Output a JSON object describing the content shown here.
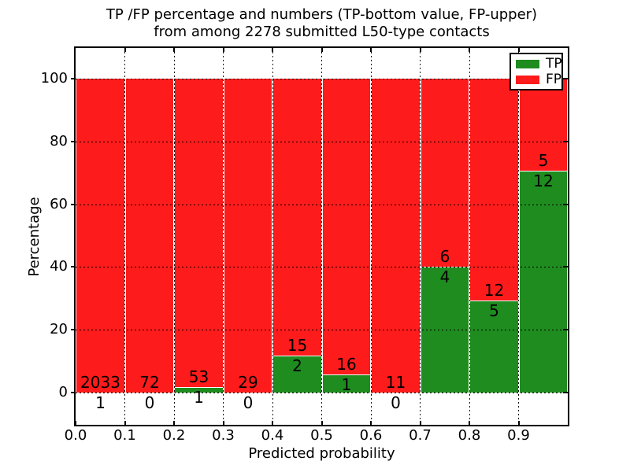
{
  "chart_data": {
    "type": "bar",
    "stacking": "percentage",
    "title": "TP /FP percentage and numbers (TP-bottom value, FP-upper)",
    "subtitle": "from among 2278 submitted L50-type contacts",
    "xlabel": "Predicted probability",
    "ylabel": "Percentage",
    "total_submitted": 2278,
    "bin_width": 0.1,
    "bin_starts": [
      0.0,
      0.1,
      0.2,
      0.3,
      0.4,
      0.5,
      0.6,
      0.7,
      0.8,
      0.9
    ],
    "series": [
      {
        "name": "TP",
        "color": "#1f8c1f",
        "counts": [
          1,
          0,
          1,
          0,
          2,
          1,
          0,
          4,
          5,
          12
        ]
      },
      {
        "name": "FP",
        "color": "#fe1b1b",
        "counts": [
          2033,
          72,
          53,
          29,
          15,
          16,
          11,
          6,
          12,
          5
        ]
      }
    ],
    "tp_percentages": [
      0.05,
      0.0,
      1.85,
      0.0,
      11.76,
      5.88,
      0.0,
      40.0,
      29.41,
      70.59
    ],
    "x_tick_labels": [
      "0.0",
      "0.1",
      "0.2",
      "0.3",
      "0.4",
      "0.5",
      "0.6",
      "0.7",
      "0.8",
      "0.9"
    ],
    "y_ticks": [
      0,
      20,
      40,
      60,
      80,
      100
    ],
    "xlim": [
      0.0,
      1.0
    ],
    "grid": "dotted",
    "legend": {
      "position": "upper right",
      "entries": [
        "TP",
        "FP"
      ]
    }
  }
}
